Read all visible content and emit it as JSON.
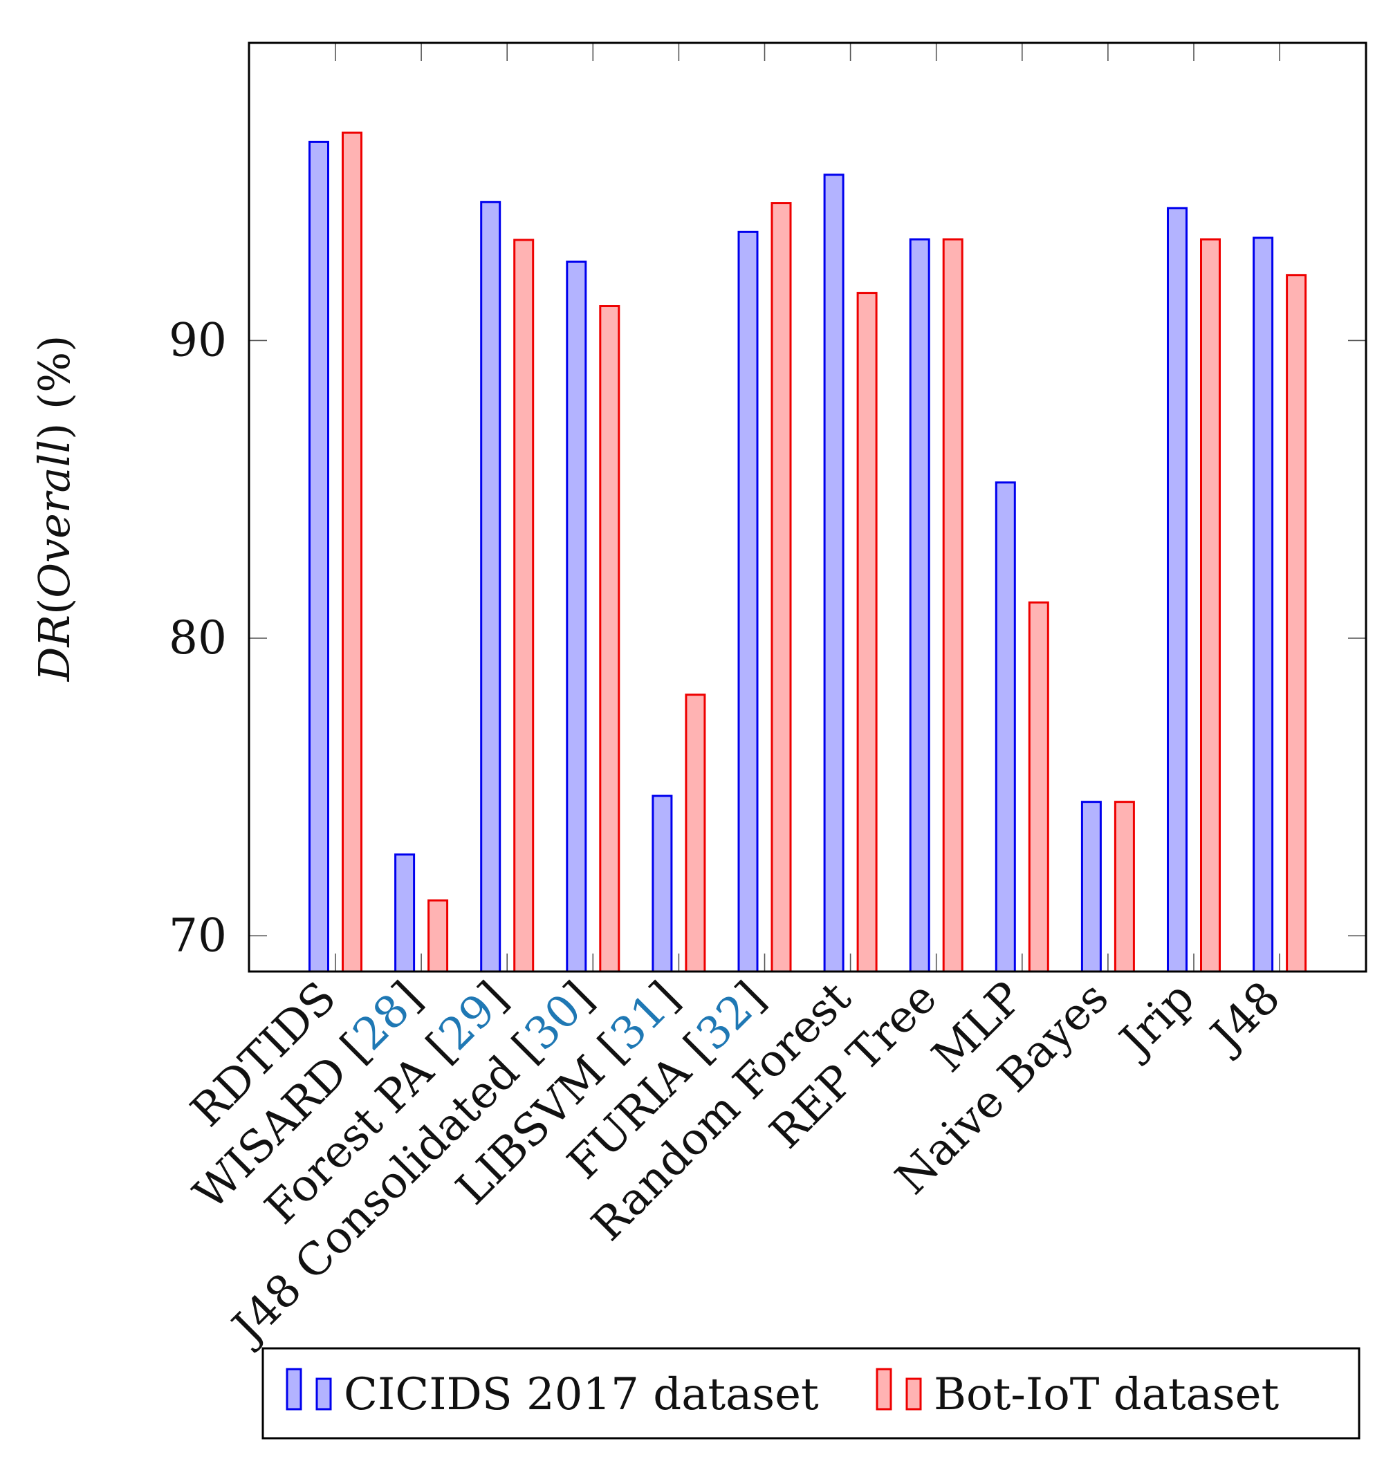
{
  "chart_data": {
    "type": "bar",
    "categories": [
      {
        "name": "RDTIDS",
        "ref": null
      },
      {
        "name": "WISARD",
        "ref": "28"
      },
      {
        "name": "Forest PA",
        "ref": "29"
      },
      {
        "name": "J48 Consolidated",
        "ref": "30"
      },
      {
        "name": "LIBSVM",
        "ref": "31"
      },
      {
        "name": "FURIA",
        "ref": "32"
      },
      {
        "name": "Random Forest",
        "ref": null
      },
      {
        "name": "REP Tree",
        "ref": null
      },
      {
        "name": "MLP",
        "ref": null
      },
      {
        "name": "Naive Bayes",
        "ref": null
      },
      {
        "name": "Jrip",
        "ref": null
      },
      {
        "name": "J48",
        "ref": null
      }
    ],
    "series": [
      {
        "name": "CICIDS 2017 dataset",
        "stroke": "#0000ee",
        "fill": "#b3b3ff",
        "values": [
          96.67,
          72.73,
          94.65,
          92.65,
          74.7,
          93.65,
          95.57,
          93.4,
          85.23,
          74.5,
          94.45,
          93.45
        ]
      },
      {
        "name": "Bot-IoT dataset",
        "stroke": "#ee0000",
        "fill": "#ffb3b3",
        "values": [
          96.98,
          71.19,
          93.38,
          91.16,
          78.1,
          94.62,
          91.6,
          93.4,
          81.2,
          74.5,
          93.4,
          92.2
        ]
      }
    ],
    "ylabel_main": "DR",
    "ylabel_paren": "Overall",
    "ylabel_unit": "(%)",
    "yticks": [
      70,
      80,
      90
    ],
    "ylim": [
      68.8,
      100
    ],
    "legend_position": "bottom",
    "grid": false,
    "cite_color": "#1f78b4"
  }
}
